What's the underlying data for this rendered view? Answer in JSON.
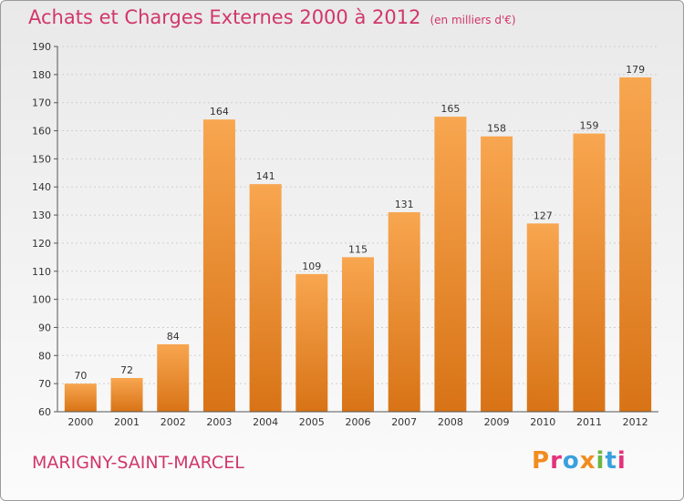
{
  "header": {
    "title": "Achats et Charges Externes 2000 à 2012",
    "unit": "(en milliers d'€)"
  },
  "footer": {
    "commune": "MARIGNY-SAINT-MARCEL",
    "logo_text": "Proxiti",
    "logo_colors": [
      "#f28c1e",
      "#e4337b",
      "#3aa0de",
      "#f28c1e",
      "#6ab643",
      "#3aa0de",
      "#e4337b"
    ]
  },
  "colors": {
    "bar_light": "#f8a650",
    "bar_dark": "#d87316",
    "accent": "#d1366b",
    "grid": "#cfcfcf"
  },
  "chart_data": {
    "type": "bar",
    "title": "Achats et Charges Externes 2000 à 2012",
    "subtitle": "(en milliers d'€)",
    "xlabel": "",
    "ylabel": "",
    "categories": [
      "2000",
      "2001",
      "2002",
      "2003",
      "2004",
      "2005",
      "2006",
      "2007",
      "2008",
      "2009",
      "2010",
      "2011",
      "2012"
    ],
    "values": [
      70,
      72,
      84,
      164,
      141,
      109,
      115,
      131,
      165,
      158,
      127,
      159,
      179
    ],
    "ylim": [
      60,
      190
    ],
    "yticks": [
      60,
      70,
      80,
      90,
      100,
      110,
      120,
      130,
      140,
      150,
      160,
      170,
      180,
      190
    ],
    "grid": true,
    "legend": "none"
  }
}
